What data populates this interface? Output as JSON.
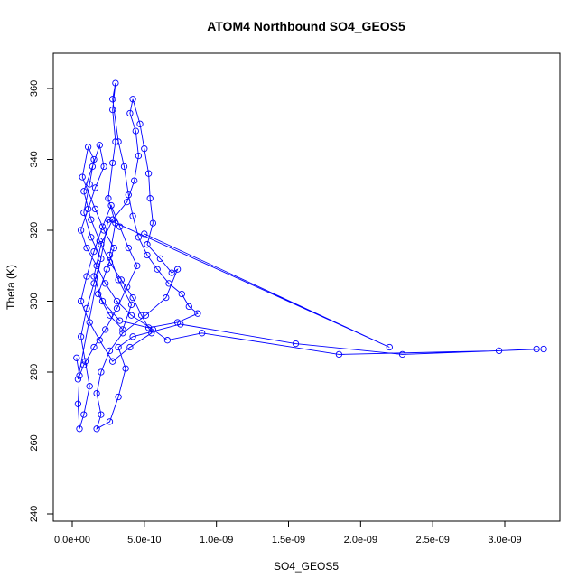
{
  "chart_data": {
    "type": "line",
    "title": "ATOM4 Northbound SO4_GEOS5",
    "xlabel": "SO4_GEOS5",
    "ylabel": "Theta (K)",
    "xlim": [
      0,
      3.3e-09
    ],
    "ylim": [
      240,
      365
    ],
    "grid": false,
    "legend": "none",
    "x_tick_values": [
      0,
      5e-10,
      1e-09,
      1.5e-09,
      2e-09,
      2.5e-09,
      3e-09
    ],
    "x_tick_labels": [
      "0.0e+00",
      "5.0e-10",
      "1.0e-09",
      "1.5e-09",
      "2.0e-09",
      "2.5e-09",
      "3.0e-09"
    ],
    "y_tick_values": [
      240,
      260,
      280,
      300,
      320,
      340,
      360
    ],
    "y_tick_labels": [
      "240",
      "260",
      "280",
      "300",
      "320",
      "340",
      "360"
    ],
    "series_color": "#0000ff",
    "marker": "open-circle",
    "series": [
      {
        "name": "",
        "points": [
          [
            3e-11,
            284.0
          ],
          [
            5e-11,
            279.0
          ],
          [
            4e-11,
            271.0
          ],
          [
            5e-11,
            264.0
          ],
          [
            8e-11,
            268.0
          ],
          [
            1.2e-10,
            276.0
          ],
          [
            9e-11,
            283.0
          ],
          [
            6e-11,
            290.0
          ],
          [
            1e-10,
            298.0
          ],
          [
            1.5e-10,
            305.0
          ],
          [
            2e-10,
            312.0
          ],
          [
            1.3e-10,
            318.0
          ],
          [
            8e-11,
            325.0
          ],
          [
            1.2e-10,
            333.0
          ],
          [
            1.5e-10,
            340.0
          ],
          [
            1.1e-10,
            343.5
          ],
          [
            7e-11,
            335.0
          ],
          [
            1.6e-10,
            326.0
          ],
          [
            2.2e-10,
            320.0
          ],
          [
            2.9e-10,
            315.0
          ],
          [
            2.4e-10,
            309.0
          ],
          [
            1.8e-10,
            302.0
          ],
          [
            2.6e-10,
            296.0
          ],
          [
            3.5e-10,
            292.0
          ],
          [
            4.1e-10,
            299.0
          ],
          [
            3.2e-10,
            306.0
          ],
          [
            2.6e-10,
            313.0
          ],
          [
            3e-10,
            322.0
          ],
          [
            2.5e-10,
            329.0
          ],
          [
            2.8e-10,
            339.0
          ],
          [
            3e-10,
            345.0
          ],
          [
            2.8e-10,
            354.0
          ],
          [
            3e-10,
            361.5
          ],
          [
            2.8e-10,
            357.0
          ],
          [
            3.2e-10,
            345.0
          ],
          [
            3.6e-10,
            338.0
          ],
          [
            3.9e-10,
            330.0
          ],
          [
            4.2e-10,
            324.0
          ],
          [
            4.6e-10,
            318.0
          ],
          [
            5.2e-10,
            313.0
          ],
          [
            5.9e-10,
            309.0
          ],
          [
            6.7e-10,
            305.0
          ],
          [
            7.6e-10,
            302.0
          ],
          [
            8.1e-10,
            298.5
          ],
          [
            8.7e-10,
            296.5
          ],
          [
            7.3e-10,
            294.0
          ],
          [
            5.3e-10,
            292.5
          ],
          [
            3.3e-10,
            294.5
          ],
          [
            2.1e-10,
            300.0
          ],
          [
            1.5e-10,
            307.0
          ],
          [
            2e-10,
            316.0
          ],
          [
            2.8e-10,
            323.0
          ],
          [
            3.8e-10,
            328.0
          ],
          [
            4.3e-10,
            334.0
          ],
          [
            4.6e-10,
            341.0
          ],
          [
            4.4e-10,
            348.0
          ],
          [
            4e-10,
            353.0
          ],
          [
            4.2e-10,
            357.0
          ],
          [
            4.7e-10,
            350.0
          ],
          [
            5e-10,
            343.0
          ],
          [
            5.3e-10,
            336.0
          ],
          [
            5.4e-10,
            329.0
          ],
          [
            5.6e-10,
            322.0
          ],
          [
            5.2e-10,
            316.0
          ],
          [
            6.1e-10,
            312.0
          ],
          [
            6.9e-10,
            308.0
          ],
          [
            7.3e-10,
            309.0
          ],
          [
            6.5e-10,
            301.0
          ],
          [
            5.1e-10,
            296.0
          ],
          [
            3.5e-10,
            291.0
          ],
          [
            2.6e-10,
            286.0
          ],
          [
            2e-10,
            280.0
          ],
          [
            1.7e-10,
            274.0
          ],
          [
            2e-10,
            268.0
          ],
          [
            1.7e-10,
            264.0
          ],
          [
            2.6e-10,
            266.0
          ],
          [
            3.2e-10,
            273.0
          ],
          [
            3.7e-10,
            281.0
          ],
          [
            3.2e-10,
            287.0
          ],
          [
            4.2e-10,
            290.0
          ],
          [
            7.5e-10,
            293.5
          ],
          [
            1.55e-09,
            288.0
          ],
          [
            2.29e-09,
            285.0
          ],
          [
            3.27e-09,
            286.5
          ],
          [
            3.22e-09,
            286.5
          ],
          [
            2.96e-09,
            286.0
          ],
          [
            1.85e-09,
            285.0
          ],
          [
            9e-10,
            291.0
          ],
          [
            6.6e-10,
            289.0
          ],
          [
            5.6e-10,
            292.0
          ],
          [
            4.1e-10,
            296.0
          ],
          [
            3.1e-10,
            300.0
          ],
          [
            2.3e-10,
            305.0
          ],
          [
            1.7e-10,
            310.0
          ],
          [
            1e-10,
            315.0
          ],
          [
            6e-11,
            320.0
          ],
          [
            1.1e-10,
            326.0
          ],
          [
            1.6e-10,
            332.0
          ],
          [
            2.2e-10,
            338.0
          ],
          [
            1.9e-10,
            344.0
          ],
          [
            1.4e-10,
            338.0
          ],
          [
            8e-11,
            331.0
          ],
          [
            1.3e-10,
            323.0
          ],
          [
            1.9e-10,
            317.0
          ],
          [
            2.6e-10,
            311.0
          ],
          [
            3.4e-10,
            306.0
          ],
          [
            4.2e-10,
            301.0
          ],
          [
            4.8e-10,
            296.0
          ],
          [
            5.5e-10,
            291.0
          ],
          [
            4e-10,
            287.0
          ],
          [
            2.8e-10,
            283.0
          ],
          [
            1.9e-10,
            289.0
          ],
          [
            1.2e-10,
            294.0
          ],
          [
            6e-11,
            300.0
          ],
          [
            1e-10,
            307.0
          ],
          [
            1.5e-10,
            314.0
          ],
          [
            2.1e-10,
            321.0
          ],
          [
            2.7e-10,
            327.0
          ],
          [
            3.3e-10,
            321.0
          ],
          [
            3.9e-10,
            315.0
          ],
          [
            4.5e-10,
            310.0
          ],
          [
            3.8e-10,
            304.0
          ],
          [
            3.1e-10,
            298.0
          ],
          [
            2.3e-10,
            292.0
          ],
          [
            1.5e-10,
            287.0
          ],
          [
            8e-11,
            282.0
          ],
          [
            4e-11,
            278.0
          ],
          [
            2.5e-10,
            323.0
          ],
          [
            2.2e-09,
            287.0
          ],
          [
            5e-10,
            319.0
          ]
        ]
      }
    ]
  }
}
